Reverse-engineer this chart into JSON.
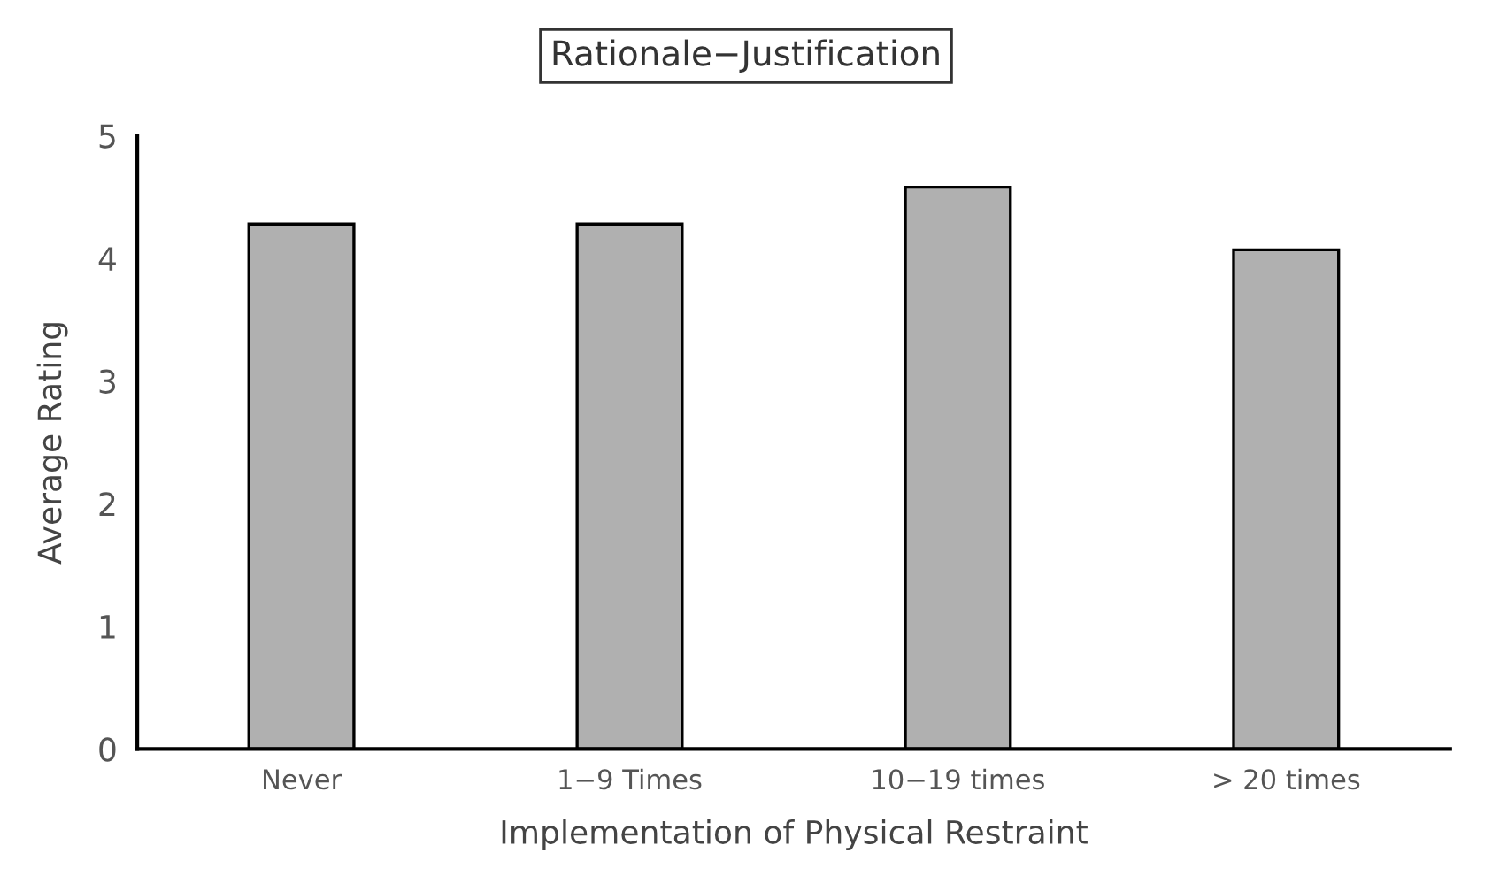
{
  "chart_data": {
    "type": "bar",
    "title": "Rationale−Justification",
    "xlabel": "Implementation of Physical Restraint",
    "ylabel": "Average Rating",
    "categories": [
      "Never",
      "1−9 Times",
      "10−19 times",
      "> 20 times"
    ],
    "values": [
      4.28,
      4.28,
      4.58,
      4.07
    ],
    "color": "#b0b0b0",
    "ylim": [
      0,
      5
    ],
    "yticks": [
      0,
      1,
      2,
      3,
      4,
      5
    ],
    "grid": false,
    "legend": false
  }
}
